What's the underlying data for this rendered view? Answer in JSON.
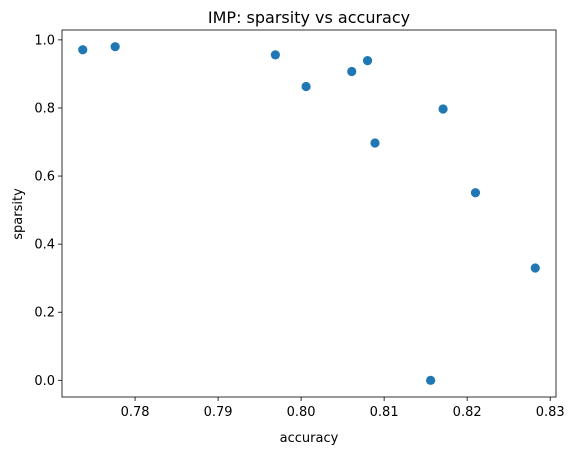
{
  "chart_data": {
    "type": "scatter",
    "title": "IMP: sparsity vs accuracy",
    "xlabel": "accuracy",
    "ylabel": "sparsity",
    "xlim": [
      0.7712,
      0.8307
    ],
    "ylim": [
      -0.049,
      1.029
    ],
    "xticks": [
      0.78,
      0.79,
      0.8,
      0.81,
      0.82,
      0.83
    ],
    "xtick_labels": [
      "0.78",
      "0.79",
      "0.80",
      "0.81",
      "0.82",
      "0.83"
    ],
    "yticks": [
      0.0,
      0.2,
      0.4,
      0.6,
      0.8,
      1.0
    ],
    "ytick_labels": [
      "0.0",
      "0.2",
      "0.4",
      "0.6",
      "0.8",
      "1.0"
    ],
    "grid": false,
    "marker_color": "#1f77b4",
    "points": [
      {
        "x": 0.7737,
        "y": 0.971
      },
      {
        "x": 0.7776,
        "y": 0.98
      },
      {
        "x": 0.7969,
        "y": 0.956
      },
      {
        "x": 0.8006,
        "y": 0.863
      },
      {
        "x": 0.8061,
        "y": 0.907
      },
      {
        "x": 0.808,
        "y": 0.939
      },
      {
        "x": 0.8089,
        "y": 0.697
      },
      {
        "x": 0.8171,
        "y": 0.797
      },
      {
        "x": 0.821,
        "y": 0.551
      },
      {
        "x": 0.8282,
        "y": 0.33
      },
      {
        "x": 0.8156,
        "y": 0.0
      }
    ]
  }
}
